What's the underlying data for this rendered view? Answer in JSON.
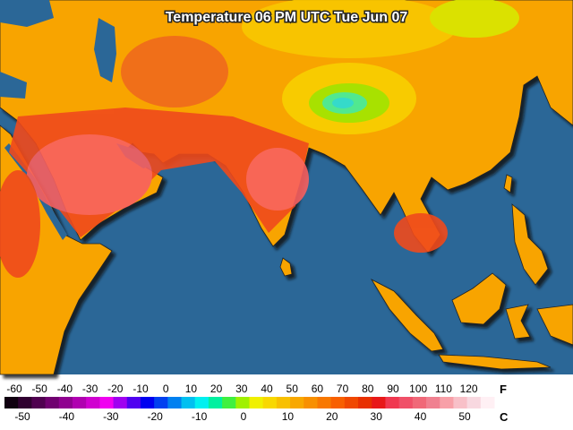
{
  "title": "Temperature 06 PM UTC Tue Jun 07",
  "legend": {
    "fahrenheit": {
      "unit": "F",
      "ticks": [
        "-60",
        "-50",
        "-40",
        "-30",
        "-20",
        "-10",
        "0",
        "10",
        "20",
        "30",
        "40",
        "50",
        "60",
        "70",
        "80",
        "90",
        "100",
        "110",
        "120"
      ]
    },
    "celsius": {
      "unit": "C",
      "ticks": [
        "-50",
        "-40",
        "-30",
        "-20",
        "-10",
        "0",
        "10",
        "20",
        "30",
        "40",
        "50"
      ]
    }
  }
}
